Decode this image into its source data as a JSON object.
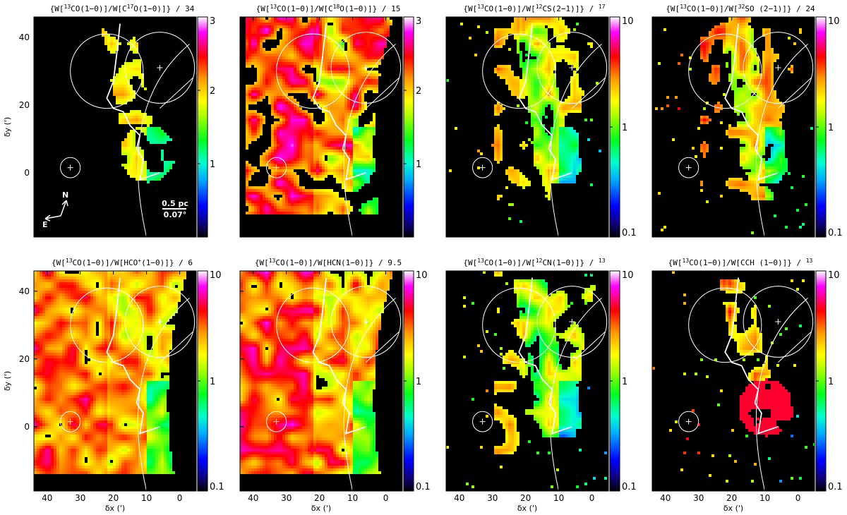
{
  "chart_data": {
    "type": "heatmap",
    "layout": "2 rows x 4 columns of ratio maps with individual colorbars",
    "x_axis": {
      "label": "δx (')",
      "range": [
        44,
        -5
      ],
      "ticks": [
        40,
        30,
        20,
        10,
        0
      ],
      "reversed": true
    },
    "y_axis": {
      "label": "δy (')",
      "range": [
        -19,
        46
      ],
      "ticks": [
        0,
        20,
        40
      ]
    },
    "colormap": "rainbow (black, blue, cyan, green, yellow, orange, red, magenta, white)",
    "background": "black",
    "overlays": {
      "circles": [
        {
          "center": [
            22,
            30
          ],
          "radius": 11
        },
        {
          "center": [
            6,
            31
          ],
          "radius": 10.5
        },
        {
          "center": [
            33,
            1.5
          ],
          "radius": 3
        }
      ],
      "cross_markers": [
        [
          6,
          31
        ],
        [
          33,
          1.5
        ]
      ],
      "curves": [
        "large arc boundary on right side",
        "thin diagonal line upper right",
        "white contour outline of filament"
      ]
    },
    "annotations": {
      "north": "N",
      "east": "E",
      "scale_pc": "0.5 pc",
      "scale_deg": "0.07°"
    },
    "panels": [
      {
        "row": 0,
        "col": 0,
        "title": "{W[13CO(1−0)]/W[C17O(1−0)]} / 34",
        "scale": "linear",
        "cbar_range": [
          0,
          3
        ],
        "cbar_ticks": [
          "1",
          "2",
          "3"
        ],
        "show_ylabel": true,
        "show_xlabel": false,
        "annotated": true
      },
      {
        "row": 0,
        "col": 1,
        "title": "{W[13CO(1−0)]/W[C18O(1−0)]} / 15",
        "scale": "linear",
        "cbar_range": [
          0,
          3
        ],
        "cbar_ticks": [
          "1",
          "2",
          "3"
        ],
        "show_ylabel": false,
        "show_xlabel": false,
        "annotated": false
      },
      {
        "row": 0,
        "col": 2,
        "title": "{W[13CO(1−0)]/W[12CS(2−1)]} / 17",
        "scale": "log",
        "cbar_range": [
          0.1,
          10
        ],
        "cbar_ticks": [
          "0.1",
          "1",
          "10"
        ],
        "show_ylabel": false,
        "show_xlabel": false,
        "annotated": false
      },
      {
        "row": 0,
        "col": 3,
        "title": "{W[13CO(1−0)]/W[32SO (2−1)]} / 24",
        "scale": "log",
        "cbar_range": [
          0.1,
          10
        ],
        "cbar_ticks": [
          "0.1",
          "1",
          "10"
        ],
        "show_ylabel": false,
        "show_xlabel": false,
        "annotated": false
      },
      {
        "row": 1,
        "col": 0,
        "title": "{W[13CO(1−0)]/W[HCO+(1−0)]} / 6",
        "scale": "log",
        "cbar_range": [
          0.1,
          10
        ],
        "cbar_ticks": [
          "0.1",
          "1",
          "10"
        ],
        "show_ylabel": true,
        "show_xlabel": true,
        "annotated": false
      },
      {
        "row": 1,
        "col": 1,
        "title": "{W[13CO(1−0)]/W[HCN(1−0)]} / 9.5",
        "scale": "log",
        "cbar_range": [
          0.1,
          10
        ],
        "cbar_ticks": [
          "0.1",
          "1",
          "10"
        ],
        "show_ylabel": false,
        "show_xlabel": true,
        "annotated": false
      },
      {
        "row": 1,
        "col": 2,
        "title": "{W[13CO(1−0)]/W[12CN(1−0)]} / 13",
        "scale": "log",
        "cbar_range": [
          0.1,
          10
        ],
        "cbar_ticks": [
          "0.1",
          "1",
          "10"
        ],
        "show_ylabel": false,
        "show_xlabel": true,
        "annotated": false
      },
      {
        "row": 1,
        "col": 3,
        "title": "{W[13CO(1−0)]/W[CCH (1−0)]} / 13",
        "scale": "log",
        "cbar_range": [
          0.1,
          10
        ],
        "cbar_ticks": [
          "0.1",
          "1",
          "10"
        ],
        "show_ylabel": false,
        "show_xlabel": true,
        "annotated": false
      }
    ]
  }
}
